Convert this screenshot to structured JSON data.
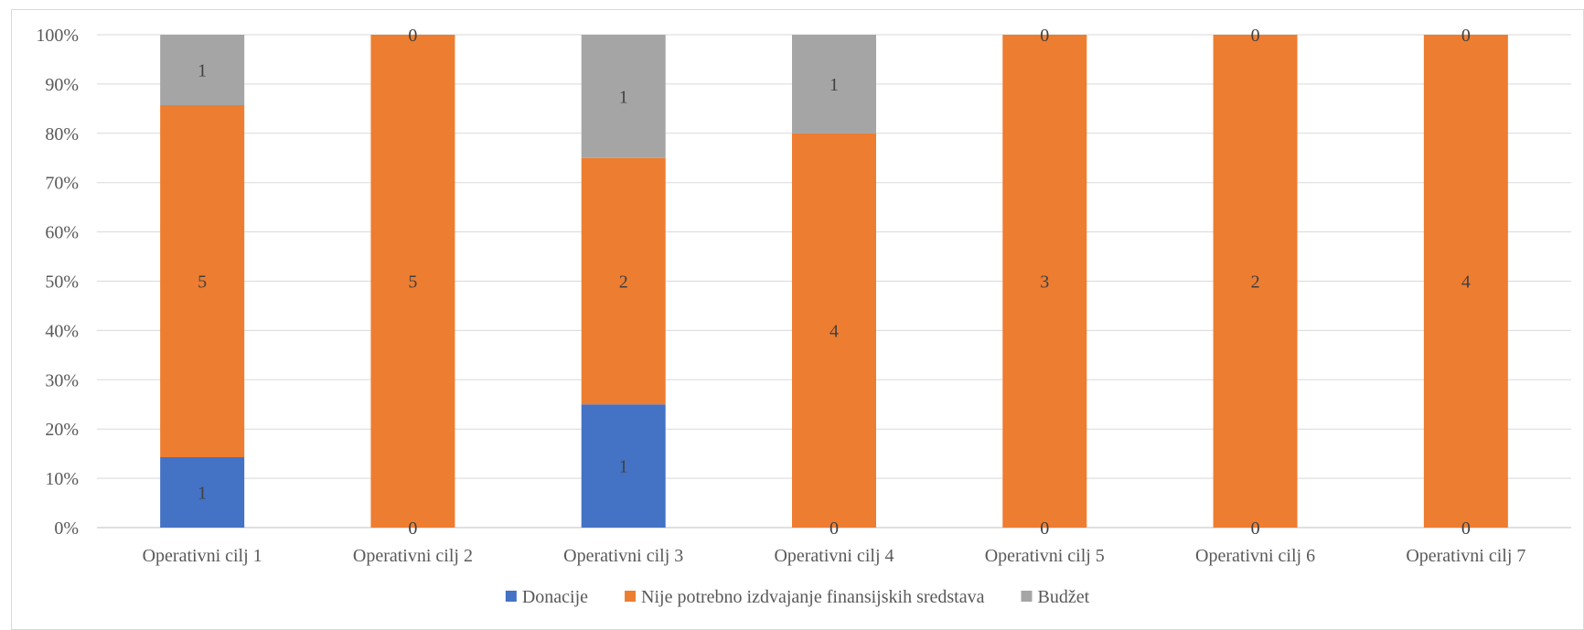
{
  "chart_data": {
    "type": "bar",
    "stacked": "percent",
    "categories": [
      "Operativni cilj 1",
      "Operativni cilj 2",
      "Operativni cilj 3",
      "Operativni cilj 4",
      "Operativni cilj 5",
      "Operativni cilj 6",
      "Operativni cilj 7"
    ],
    "series": [
      {
        "name": "Donacije",
        "color": "#4472C4",
        "values": [
          1,
          0,
          1,
          0,
          0,
          0,
          0
        ]
      },
      {
        "name": "Nije potrebno izdvajanje finansijskih sredstava",
        "color": "#ED7D31",
        "values": [
          5,
          5,
          2,
          4,
          3,
          2,
          4
        ]
      },
      {
        "name": "Budžet",
        "color": "#A5A5A5",
        "values": [
          1,
          0,
          1,
          1,
          0,
          0,
          0
        ]
      }
    ],
    "y_ticks": [
      "0%",
      "10%",
      "20%",
      "30%",
      "40%",
      "50%",
      "60%",
      "70%",
      "80%",
      "90%",
      "100%"
    ],
    "ylim": [
      0,
      100
    ],
    "grid": true,
    "legend_position": "bottom",
    "title": "",
    "xlabel": "",
    "ylabel": ""
  }
}
